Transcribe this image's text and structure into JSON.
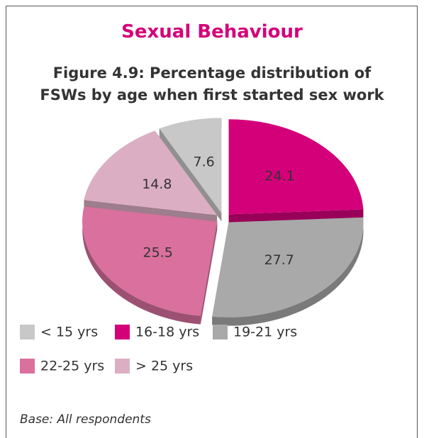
{
  "chart_data": {
    "type": "pie",
    "title": "Sexual Behaviour",
    "subtitle": "Figure 4.9: Percentage distribution of FSWs by age when first started sex work",
    "categories": [
      "< 15 yrs",
      "16-18 yrs",
      "19-21 yrs",
      "22-25 yrs",
      "> 25 yrs"
    ],
    "values": [
      7.6,
      24.1,
      27.7,
      25.5,
      14.8
    ],
    "colors": [
      "#c8c8c8",
      "#d4007a",
      "#a9a9a9",
      "#d9709e",
      "#dcaec4"
    ],
    "note": "Base: All respondents"
  }
}
